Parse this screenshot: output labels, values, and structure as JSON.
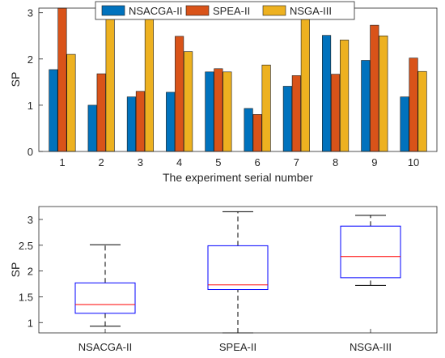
{
  "chart_data": [
    {
      "type": "bar",
      "xlabel": "The experiment serial number",
      "ylabel": "SP",
      "ylim": [
        0,
        3.1
      ],
      "yticks": [
        0,
        1,
        2,
        3
      ],
      "categories": [
        "1",
        "2",
        "3",
        "4",
        "5",
        "6",
        "7",
        "8",
        "9",
        "10"
      ],
      "legend_position": "top",
      "series": [
        {
          "name": "NSACGA-II",
          "color": "#0072BD",
          "values": [
            1.77,
            1.0,
            1.18,
            1.28,
            1.72,
            0.93,
            1.41,
            2.51,
            1.97,
            1.18
          ]
        },
        {
          "name": "SPEA-II",
          "color": "#D95319",
          "values": [
            3.15,
            1.68,
            1.3,
            2.49,
            1.79,
            0.8,
            1.64,
            1.67,
            2.73,
            2.02
          ]
        },
        {
          "name": "NSGA-III",
          "color": "#EDB120",
          "values": [
            2.1,
            2.99,
            3.08,
            2.16,
            1.72,
            1.87,
            2.87,
            2.41,
            2.5,
            1.73
          ]
        }
      ]
    },
    {
      "type": "box",
      "ylabel": "SP",
      "ylim": [
        0.8,
        3.25
      ],
      "yticks": [
        1,
        1.5,
        2,
        2.5,
        3
      ],
      "categories": [
        "NSACGA-II",
        "SPEA-II",
        "NSGA-III"
      ],
      "box_color": "#0000FF",
      "median_color": "#FF0000",
      "boxes": [
        {
          "whisker_low": 0.93,
          "q1": 1.18,
          "median": 1.35,
          "q3": 1.77,
          "whisker_high": 2.51
        },
        {
          "whisker_low": 0.8,
          "q1": 1.64,
          "median": 1.73,
          "q3": 2.49,
          "whisker_high": 3.15
        },
        {
          "whisker_low": 1.72,
          "q1": 1.87,
          "median": 2.28,
          "q3": 2.87,
          "whisker_high": 3.08
        }
      ]
    }
  ]
}
